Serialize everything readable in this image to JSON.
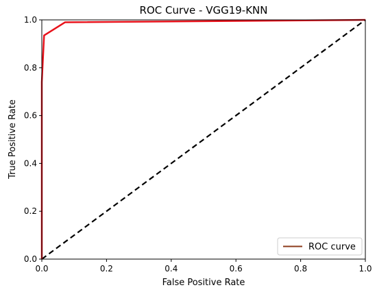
{
  "chart_data": {
    "type": "line",
    "title": "ROC Curve - VGG19-KNN",
    "xlabel": "False Positive Rate",
    "ylabel": "True Positive Rate",
    "xlim": [
      0.0,
      1.0
    ],
    "ylim": [
      0.0,
      1.0
    ],
    "xticks": [
      "0.0",
      "0.2",
      "0.4",
      "0.6",
      "0.8",
      "1.0"
    ],
    "yticks": [
      "0.0",
      "0.2",
      "0.4",
      "0.6",
      "0.8",
      "1.0"
    ],
    "grid": false,
    "legend_position": "lower-right",
    "series": [
      {
        "name": "ROC curve",
        "legend_color": "#8b3a1a",
        "color": "#e8121b",
        "x": [
          0.0,
          0.0,
          0.0,
          0.007,
          0.072,
          1.0
        ],
        "y": [
          0.0,
          0.5,
          0.74,
          0.935,
          0.99,
          1.0
        ]
      },
      {
        "name": "",
        "color": "#000000",
        "dashed": true,
        "x": [
          0.0,
          1.0
        ],
        "y": [
          0.0,
          1.0
        ]
      }
    ]
  }
}
